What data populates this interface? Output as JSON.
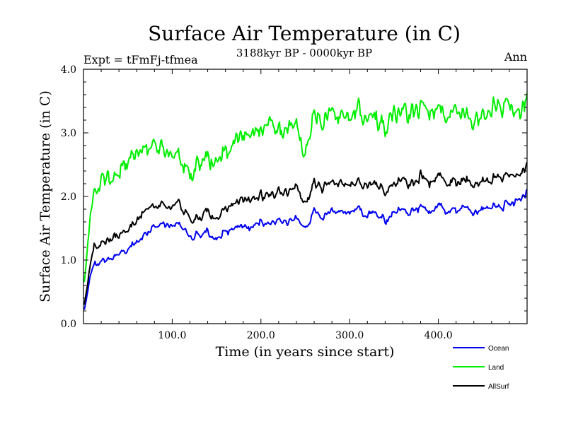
{
  "chart_data": {
    "type": "line",
    "title": "Surface Air Temperature (in C)",
    "subtitle": "3188kyr BP - 0000kyr BP",
    "left_label": "Expt = tFmFj-tfmea",
    "right_label": "Ann",
    "xlabel": "Time (in years since start)",
    "ylabel": "Surface Air Temperature (in C)",
    "xlim": [
      0,
      500
    ],
    "ylim": [
      0,
      4.0
    ],
    "x_ticks": [
      100,
      200,
      300,
      400
    ],
    "x_tick_labels": [
      "100.0",
      "200.0",
      "300.0",
      "400.0"
    ],
    "y_ticks": [
      0,
      1,
      2,
      3,
      4
    ],
    "y_tick_labels": [
      "0.0",
      "1.0",
      "2.0",
      "3.0",
      "4.0"
    ],
    "legend_position": "bottom-right",
    "x": [
      0,
      10,
      20,
      30,
      40,
      50,
      60,
      70,
      80,
      90,
      100,
      110,
      120,
      130,
      140,
      150,
      160,
      170,
      180,
      190,
      200,
      210,
      220,
      230,
      240,
      250,
      260,
      270,
      280,
      290,
      300,
      310,
      320,
      330,
      340,
      350,
      360,
      370,
      380,
      390,
      400,
      410,
      420,
      430,
      440,
      450,
      460,
      470,
      480,
      490,
      500
    ],
    "series": [
      {
        "name": "Ocean",
        "color": "#0000ee",
        "values": [
          0.15,
          0.9,
          1.0,
          1.05,
          1.1,
          1.15,
          1.3,
          1.45,
          1.5,
          1.55,
          1.6,
          1.55,
          1.35,
          1.4,
          1.45,
          1.3,
          1.45,
          1.5,
          1.55,
          1.5,
          1.6,
          1.55,
          1.65,
          1.6,
          1.7,
          1.5,
          1.75,
          1.7,
          1.75,
          1.8,
          1.75,
          1.8,
          1.7,
          1.75,
          1.6,
          1.75,
          1.8,
          1.75,
          1.85,
          1.75,
          1.85,
          1.8,
          1.8,
          1.85,
          1.75,
          1.8,
          1.85,
          1.8,
          1.9,
          1.95,
          2.05
        ]
      },
      {
        "name": "Land",
        "color": "#00ee00",
        "values": [
          0.5,
          2.0,
          2.3,
          2.35,
          2.4,
          2.5,
          2.7,
          2.85,
          2.7,
          2.75,
          2.75,
          2.6,
          2.3,
          2.55,
          2.6,
          2.5,
          2.7,
          2.85,
          3.0,
          2.95,
          3.05,
          3.1,
          3.1,
          3.0,
          3.2,
          2.7,
          3.3,
          3.2,
          3.3,
          3.35,
          3.3,
          3.35,
          3.2,
          3.25,
          3.05,
          3.3,
          3.35,
          3.3,
          3.4,
          3.3,
          3.35,
          3.3,
          3.4,
          3.35,
          3.2,
          3.3,
          3.4,
          3.35,
          3.45,
          3.35,
          3.55
        ]
      },
      {
        "name": "AllSurf",
        "color": "#000000",
        "values": [
          0.2,
          1.15,
          1.3,
          1.35,
          1.4,
          1.45,
          1.65,
          1.85,
          1.8,
          1.85,
          1.9,
          1.85,
          1.6,
          1.7,
          1.75,
          1.65,
          1.8,
          1.9,
          2.0,
          1.95,
          2.0,
          2.0,
          2.1,
          2.05,
          2.2,
          1.9,
          2.2,
          2.15,
          2.2,
          2.25,
          2.2,
          2.25,
          2.15,
          2.2,
          2.05,
          2.2,
          2.25,
          2.2,
          2.3,
          2.2,
          2.3,
          2.25,
          2.25,
          2.3,
          2.2,
          2.25,
          2.3,
          2.25,
          2.35,
          2.35,
          2.45
        ]
      }
    ]
  }
}
